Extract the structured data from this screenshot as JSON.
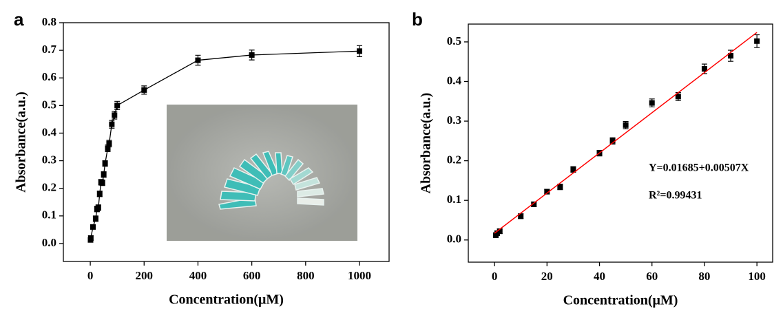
{
  "chart_data": [
    {
      "type": "scatter",
      "panel_label": "a",
      "x_label": "Concentration(μM)",
      "y_label": "Absorbance(a.u.)",
      "xlim": [
        -100,
        1110
      ],
      "ylim": [
        -0.065,
        0.8
      ],
      "xticks": [
        0,
        200,
        400,
        600,
        800,
        1000
      ],
      "yticks": [
        {
          "value": 0,
          "label": "0.0"
        },
        0.1,
        0.2,
        0.3,
        0.4,
        0.5,
        0.6,
        0.7,
        0.8
      ],
      "series": [
        {
          "color": "#000000",
          "style": "line+markers",
          "x": [
            1,
            2,
            10,
            20,
            25,
            30,
            35,
            40,
            45,
            50,
            55,
            65,
            70,
            80,
            90,
            100,
            200,
            400,
            600,
            1000
          ],
          "values": [
            0.013,
            0.02,
            0.06,
            0.09,
            0.125,
            0.13,
            0.18,
            0.222,
            0.22,
            0.25,
            0.29,
            0.345,
            0.362,
            0.432,
            0.465,
            0.5,
            0.556,
            0.664,
            0.683,
            0.697
          ],
          "errors": [
            0.008,
            0.008,
            0.008,
            0.01,
            0.01,
            0.01,
            0.01,
            0.01,
            0.01,
            0.01,
            0.01,
            0.012,
            0.012,
            0.014,
            0.014,
            0.015,
            0.015,
            0.018,
            0.018,
            0.02
          ]
        }
      ]
    },
    {
      "type": "scatter",
      "panel_label": "b",
      "x_label": "Concentration(μM)",
      "y_label": "Absorbance(a.u.)",
      "xlim": [
        -10,
        106
      ],
      "ylim": [
        -0.056,
        0.545
      ],
      "xticks": [
        0,
        20,
        40,
        60,
        80,
        100
      ],
      "yticks": [
        {
          "value": 0,
          "label": "0.0"
        },
        0.1,
        0.2,
        0.3,
        0.4,
        0.5
      ],
      "annotations": [
        "Y=0.01685+0.00507X",
        "R²=0.99431"
      ],
      "series": [
        {
          "color": "#000000",
          "style": "markers",
          "x": [
            0.5,
            1,
            2,
            10,
            15,
            20,
            25,
            30,
            40,
            45,
            50,
            60,
            70,
            80,
            90,
            100
          ],
          "values": [
            0.012,
            0.017,
            0.022,
            0.06,
            0.09,
            0.122,
            0.134,
            0.178,
            0.219,
            0.25,
            0.29,
            0.346,
            0.362,
            0.432,
            0.465,
            0.502
          ],
          "errors": [
            0.006,
            0.006,
            0.006,
            0.006,
            0.006,
            0.006,
            0.007,
            0.007,
            0.007,
            0.008,
            0.009,
            0.01,
            0.01,
            0.012,
            0.014,
            0.016
          ]
        },
        {
          "color": "#ff0000",
          "style": "line",
          "x": [
            0,
            100
          ],
          "values": [
            0.017,
            0.524
          ]
        }
      ]
    }
  ]
}
